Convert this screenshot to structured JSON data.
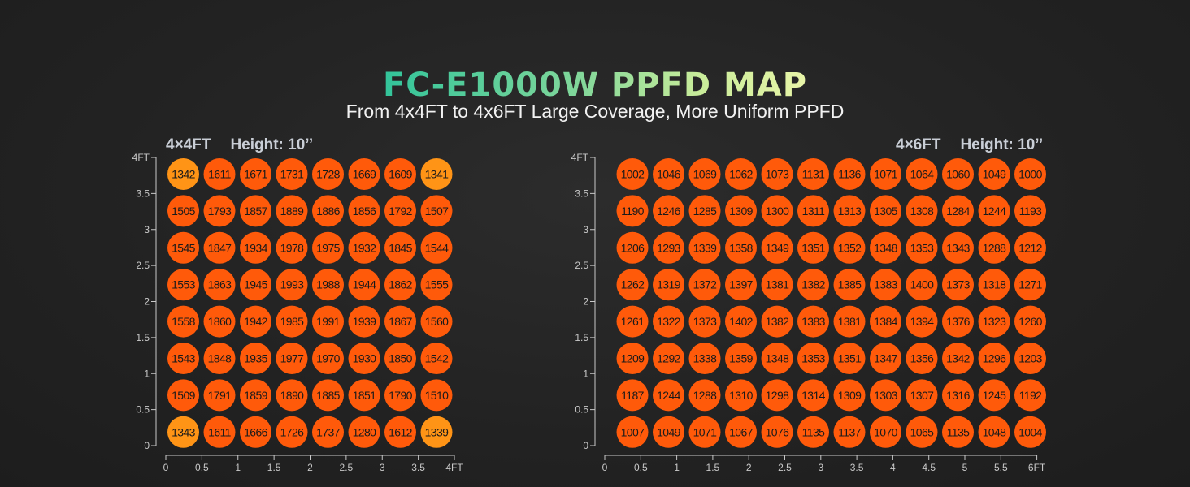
{
  "header": {
    "title": "FC-E1000W PPFD MAP",
    "subtitle": "From 4x4FT to 4x6FT Large Coverage, More Uniform PPFD"
  },
  "colors": {
    "high_value_circle": "#ff5a0a",
    "corner_value_circle": "#ff9416",
    "axis": "#c8c8c8",
    "value_text": "#1a1a1a",
    "background": "#232323"
  },
  "chart_data": [
    {
      "type": "heatmap",
      "panel_label": "4×4FT",
      "height_label": "Height: 10’’",
      "x_ticks": [
        "0",
        "0.5",
        "1",
        "1.5",
        "2",
        "2.5",
        "3",
        "3.5",
        "4FT"
      ],
      "y_ticks": [
        "0",
        "0.5",
        "1",
        "1.5",
        "2",
        "2.5",
        "3",
        "3.5",
        "4FT"
      ],
      "xlim": [
        0,
        4
      ],
      "ylim": [
        0,
        4
      ],
      "rows": [
        [
          1342,
          1611,
          1671,
          1731,
          1728,
          1669,
          1609,
          1341
        ],
        [
          1505,
          1793,
          1857,
          1889,
          1886,
          1856,
          1792,
          1507
        ],
        [
          1545,
          1847,
          1934,
          1978,
          1975,
          1932,
          1845,
          1544
        ],
        [
          1553,
          1863,
          1945,
          1993,
          1988,
          1944,
          1862,
          1555
        ],
        [
          1558,
          1860,
          1942,
          1985,
          1991,
          1939,
          1867,
          1560
        ],
        [
          1543,
          1848,
          1935,
          1977,
          1970,
          1930,
          1850,
          1542
        ],
        [
          1509,
          1791,
          1859,
          1890,
          1885,
          1851,
          1790,
          1510
        ],
        [
          1343,
          1611,
          1666,
          1726,
          1737,
          1280,
          1612,
          1339
        ]
      ],
      "light_cells": [
        [
          0,
          0
        ],
        [
          0,
          7
        ],
        [
          7,
          0
        ],
        [
          7,
          7
        ]
      ]
    },
    {
      "type": "heatmap",
      "panel_label": "4×6FT",
      "height_label": "Height: 10’’",
      "x_ticks": [
        "0",
        "0.5",
        "1",
        "1.5",
        "2",
        "2.5",
        "3",
        "3.5",
        "4",
        "4.5",
        "5",
        "5.5",
        "6FT"
      ],
      "y_ticks": [
        "0",
        "0.5",
        "1",
        "1.5",
        "2",
        "2.5",
        "3",
        "3.5",
        "4FT"
      ],
      "xlim": [
        0,
        6
      ],
      "ylim": [
        0,
        4
      ],
      "rows": [
        [
          1002,
          1046,
          1069,
          1062,
          1073,
          1131,
          1136,
          1071,
          1064,
          1060,
          1049,
          1000
        ],
        [
          1190,
          1246,
          1285,
          1309,
          1300,
          1311,
          1313,
          1305,
          1308,
          1284,
          1244,
          1193
        ],
        [
          1206,
          1293,
          1339,
          1358,
          1349,
          1351,
          1352,
          1348,
          1353,
          1343,
          1288,
          1212
        ],
        [
          1262,
          1319,
          1372,
          1397,
          1381,
          1382,
          1385,
          1383,
          1400,
          1373,
          1318,
          1271
        ],
        [
          1261,
          1322,
          1373,
          1402,
          1382,
          1383,
          1381,
          1384,
          1394,
          1376,
          1323,
          1260
        ],
        [
          1209,
          1292,
          1338,
          1359,
          1348,
          1353,
          1351,
          1347,
          1356,
          1342,
          1296,
          1203
        ],
        [
          1187,
          1244,
          1288,
          1310,
          1298,
          1314,
          1309,
          1303,
          1307,
          1316,
          1245,
          1192
        ],
        [
          1007,
          1049,
          1071,
          1067,
          1076,
          1135,
          1137,
          1070,
          1065,
          1135,
          1048,
          1004
        ]
      ],
      "light_cells": []
    }
  ]
}
